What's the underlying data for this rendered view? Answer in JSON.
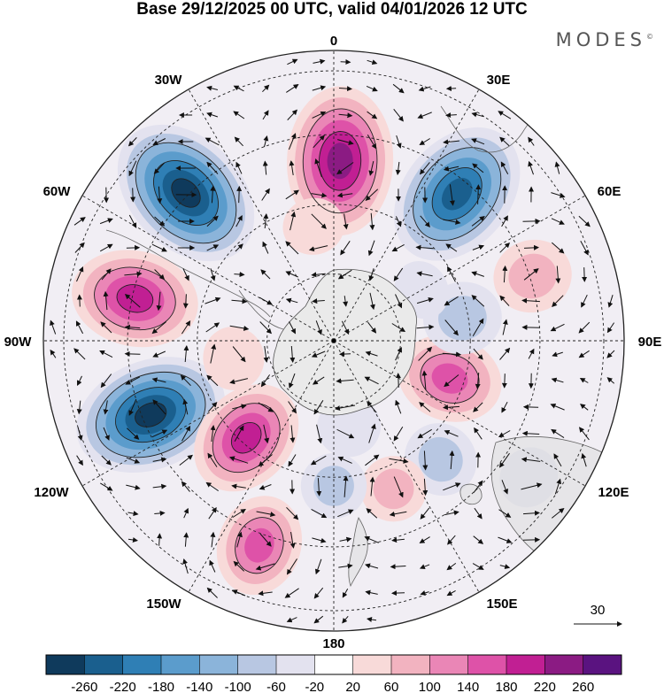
{
  "title": "Base 29/12/2025 00 UTC, valid 04/01/2026 12 UTC",
  "brand": "MODES",
  "brand_mark": "©",
  "longitude_labels": {
    "0": "0",
    "30E": "30E",
    "60E": "60E",
    "90E": "90E",
    "120E": "120E",
    "150E": "150E",
    "180": "180",
    "150W": "150W",
    "120W": "120W",
    "90W": "90W",
    "60W": "60W",
    "30W": "30W"
  },
  "reference_vector": {
    "label": "30",
    "value": 30
  },
  "colorbar": {
    "colors": [
      "#0f3a5c",
      "#1a5f8e",
      "#2f7fb5",
      "#5b9ccc",
      "#8bb4da",
      "#b8c7e2",
      "#e3e2ef",
      "#ffffff",
      "#f8dad9",
      "#f2b3c0",
      "#ea86b6",
      "#de52a8",
      "#c11f93",
      "#8b1b83",
      "#5a1380"
    ],
    "tick_labels": [
      "-260",
      "-220",
      "-180",
      "-140",
      "-100",
      "-60",
      "-20",
      "20",
      "60",
      "100",
      "140",
      "180",
      "220",
      "260"
    ]
  },
  "anomaly_centers": [
    {
      "lon": 2,
      "r": 0.62,
      "value": 250
    },
    {
      "lon": -45,
      "r": 0.72,
      "value": -270
    },
    {
      "lon": 40,
      "r": 0.66,
      "value": -250
    },
    {
      "lon": -78,
      "r": 0.7,
      "value": 200
    },
    {
      "lon": -112,
      "r": 0.68,
      "value": -260
    },
    {
      "lon": -138,
      "r": 0.45,
      "value": 180
    },
    {
      "lon": -160,
      "r": 0.75,
      "value": 140
    },
    {
      "lon": 108,
      "r": 0.42,
      "value": 150
    },
    {
      "lon": 80,
      "r": 0.45,
      "value": -90
    },
    {
      "lon": 72,
      "r": 0.72,
      "value": 90
    },
    {
      "lon": 138,
      "r": 0.55,
      "value": -80
    },
    {
      "lon": 158,
      "r": 0.55,
      "value": 60
    },
    {
      "lon": 170,
      "r": 0.3,
      "value": -50
    },
    {
      "lon": -10,
      "r": 0.4,
      "value": 40
    },
    {
      "lon": 60,
      "r": 0.35,
      "value": -30
    },
    {
      "lon": -100,
      "r": 0.35,
      "value": 50
    },
    {
      "lon": 125,
      "r": 0.82,
      "value": -40
    },
    {
      "lon": -180,
      "r": 0.5,
      "value": -60
    }
  ]
}
